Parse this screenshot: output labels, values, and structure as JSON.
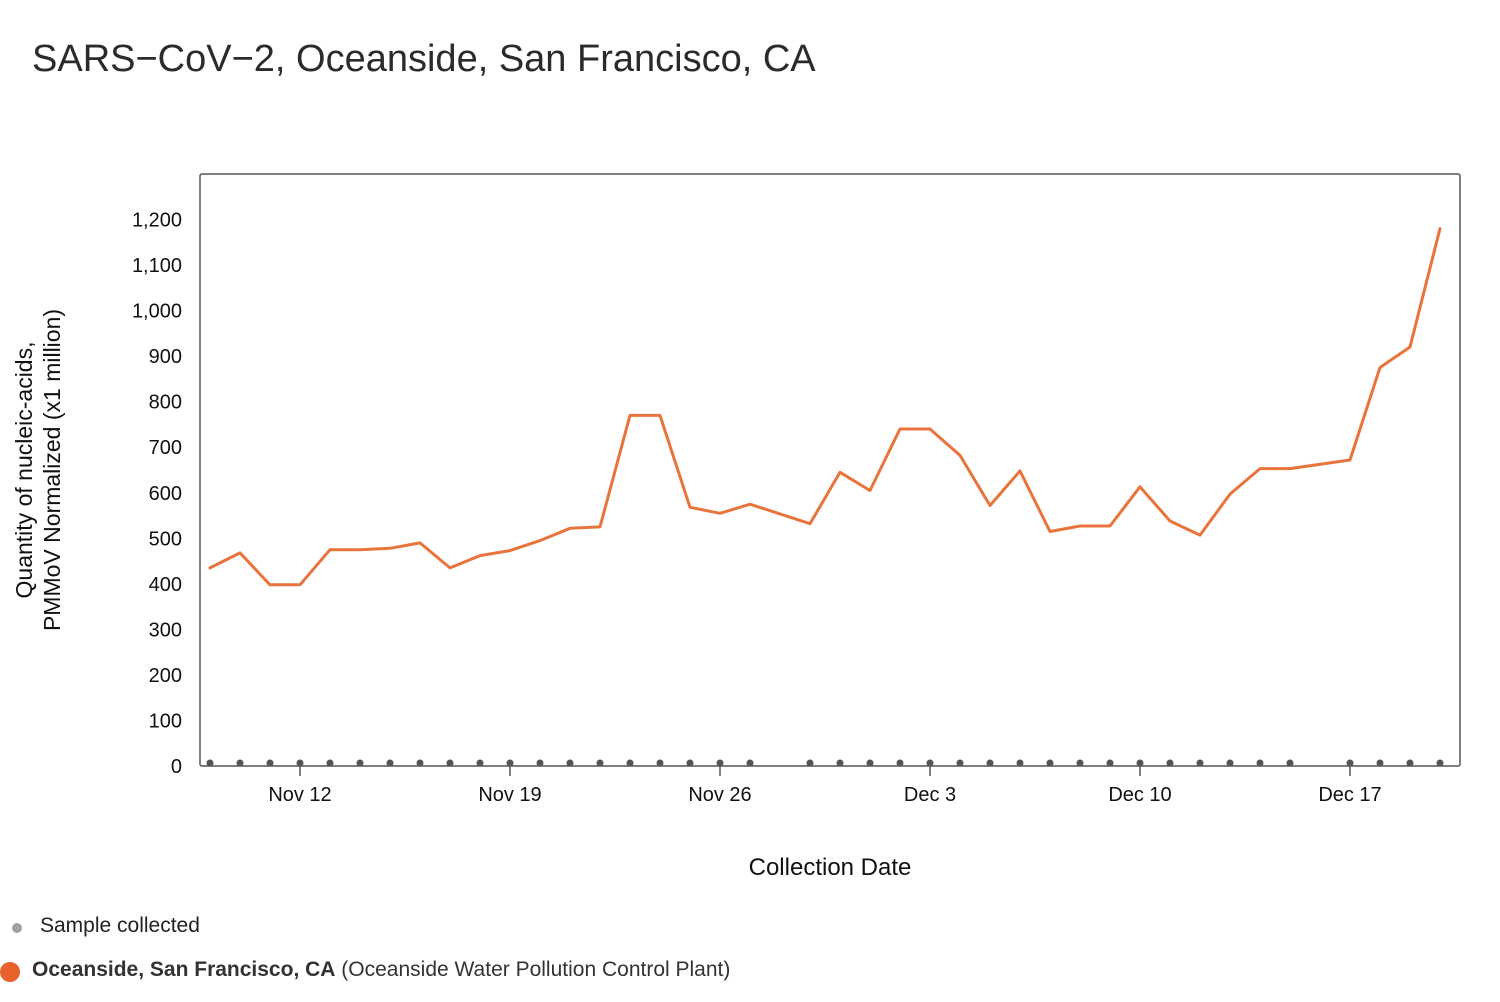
{
  "chart_data": {
    "type": "line",
    "title": "SARS−CoV−2, Oceanside, San Francisco, CA",
    "xlabel": "Collection Date",
    "ylabel_line1": "Quantity of nucleic-acids,",
    "ylabel_line2": "PMMoV Normalized (x1 million)",
    "ylim": [
      0,
      1300
    ],
    "yticks": [
      0,
      100,
      200,
      300,
      400,
      500,
      600,
      700,
      800,
      900,
      1000,
      1100,
      1200
    ],
    "ytick_labels": [
      "0",
      "100",
      "200",
      "300",
      "400",
      "500",
      "600",
      "700",
      "800",
      "900",
      "1,000",
      "1,100",
      "1,200"
    ],
    "x_start": "Nov 9",
    "x_end": "Dec 21",
    "xticks": [
      {
        "date": "2023-11-12",
        "label": "Nov 12"
      },
      {
        "date": "2023-11-19",
        "label": "Nov 19"
      },
      {
        "date": "2023-11-26",
        "label": "Nov 26"
      },
      {
        "date": "2023-12-03",
        "label": "Dec 3"
      },
      {
        "date": "2023-12-10",
        "label": "Dec 10"
      },
      {
        "date": "2023-12-17",
        "label": "Dec 17"
      }
    ],
    "grid": false,
    "series": [
      {
        "name": "Oceanside, San Francisco, CA",
        "color": "#e8743b",
        "points": [
          {
            "x": "2023-11-09",
            "y": 435
          },
          {
            "x": "2023-11-10",
            "y": 468
          },
          {
            "x": "2023-11-11",
            "y": 398
          },
          {
            "x": "2023-11-12",
            "y": 398
          },
          {
            "x": "2023-11-13",
            "y": 475
          },
          {
            "x": "2023-11-14",
            "y": 475
          },
          {
            "x": "2023-11-15",
            "y": 478
          },
          {
            "x": "2023-11-16",
            "y": 490
          },
          {
            "x": "2023-11-17",
            "y": 435
          },
          {
            "x": "2023-11-18",
            "y": 462
          },
          {
            "x": "2023-11-19",
            "y": 473
          },
          {
            "x": "2023-11-20",
            "y": 495
          },
          {
            "x": "2023-11-21",
            "y": 522
          },
          {
            "x": "2023-11-22",
            "y": 525
          },
          {
            "x": "2023-11-23",
            "y": 770
          },
          {
            "x": "2023-11-24",
            "y": 770
          },
          {
            "x": "2023-11-25",
            "y": 568
          },
          {
            "x": "2023-11-26",
            "y": 555
          },
          {
            "x": "2023-11-27",
            "y": 575
          },
          {
            "x": "2023-11-29",
            "y": 532
          },
          {
            "x": "2023-11-30",
            "y": 645
          },
          {
            "x": "2023-12-01",
            "y": 605
          },
          {
            "x": "2023-12-02",
            "y": 740
          },
          {
            "x": "2023-12-03",
            "y": 740
          },
          {
            "x": "2023-12-04",
            "y": 682
          },
          {
            "x": "2023-12-05",
            "y": 572
          },
          {
            "x": "2023-12-06",
            "y": 648
          },
          {
            "x": "2023-12-07",
            "y": 515
          },
          {
            "x": "2023-12-08",
            "y": 527
          },
          {
            "x": "2023-12-09",
            "y": 527
          },
          {
            "x": "2023-12-10",
            "y": 613
          },
          {
            "x": "2023-12-11",
            "y": 538
          },
          {
            "x": "2023-12-12",
            "y": 507
          },
          {
            "x": "2023-12-13",
            "y": 597
          },
          {
            "x": "2023-12-14",
            "y": 653
          },
          {
            "x": "2023-12-15",
            "y": 653
          },
          {
            "x": "2023-12-17",
            "y": 672
          },
          {
            "x": "2023-12-18",
            "y": 875
          },
          {
            "x": "2023-12-19",
            "y": 920
          },
          {
            "x": "2023-12-20",
            "y": 1180
          }
        ]
      }
    ],
    "sample_dates": [
      "2023-11-09",
      "2023-11-10",
      "2023-11-11",
      "2023-11-12",
      "2023-11-13",
      "2023-11-14",
      "2023-11-15",
      "2023-11-16",
      "2023-11-17",
      "2023-11-18",
      "2023-11-19",
      "2023-11-20",
      "2023-11-21",
      "2023-11-22",
      "2023-11-23",
      "2023-11-24",
      "2023-11-25",
      "2023-11-26",
      "2023-11-27",
      "2023-11-29",
      "2023-11-30",
      "2023-12-01",
      "2023-12-02",
      "2023-12-03",
      "2023-12-04",
      "2023-12-05",
      "2023-12-06",
      "2023-12-07",
      "2023-12-08",
      "2023-12-09",
      "2023-12-10",
      "2023-12-11",
      "2023-12-12",
      "2023-12-13",
      "2023-12-14",
      "2023-12-15",
      "2023-12-17",
      "2023-12-18",
      "2023-12-19",
      "2023-12-20"
    ]
  },
  "legend": {
    "sample_label": "Sample collected",
    "sample_color": "#a0a0a8",
    "site_name": "Oceanside, San Francisco, CA",
    "site_detail": "(Oceanside Water Pollution Control Plant)",
    "site_color": "#e8622c"
  }
}
